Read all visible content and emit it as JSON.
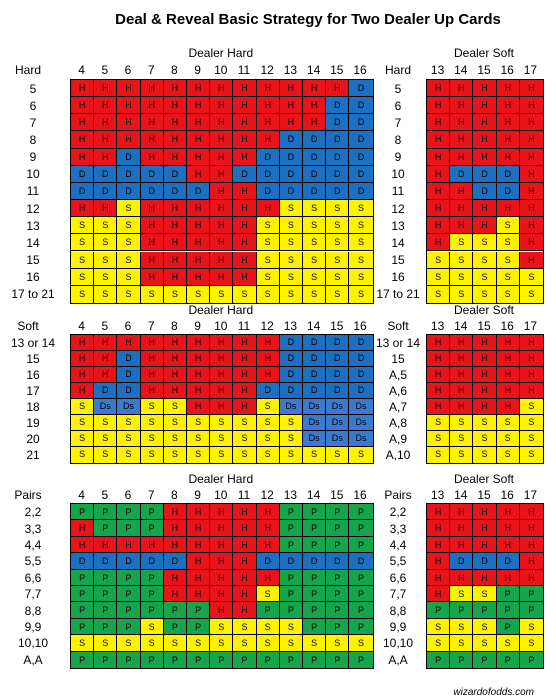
{
  "title": "Deal & Reveal Basic Strategy for Two Dealer Up Cards",
  "colors": {
    "H": "#e8141a",
    "S": "#fff200",
    "D": "#1d6fc2",
    "P": "#16a54a",
    "Ds": "#3a7ad0"
  },
  "footer": "wizardofodds.com",
  "sections": [
    {
      "corner": "Hard",
      "left_title": "Dealer Hard",
      "right_title": "Dealer Soft",
      "left_cols": [
        "4",
        "5",
        "6",
        "7",
        "8",
        "9",
        "10",
        "11",
        "12",
        "13",
        "14",
        "15",
        "16"
      ],
      "right_cols": [
        "13",
        "14",
        "15",
        "16",
        "17"
      ],
      "right_corner": "Hard",
      "rows": [
        {
          "label": "5",
          "left": [
            "H",
            "H",
            "H",
            "H",
            "H",
            "H",
            "H",
            "H",
            "H",
            "H",
            "H",
            "H",
            "D"
          ],
          "right_label": "5",
          "right": [
            "H",
            "H",
            "H",
            "H",
            "H"
          ]
        },
        {
          "label": "6",
          "left": [
            "H",
            "H",
            "H",
            "H",
            "H",
            "H",
            "H",
            "H",
            "H",
            "H",
            "H",
            "D",
            "D"
          ],
          "right_label": "6",
          "right": [
            "H",
            "H",
            "H",
            "H",
            "H"
          ]
        },
        {
          "label": "7",
          "left": [
            "H",
            "H",
            "H",
            "H",
            "H",
            "H",
            "H",
            "H",
            "H",
            "H",
            "H",
            "D",
            "D"
          ],
          "right_label": "7",
          "right": [
            "H",
            "H",
            "H",
            "H",
            "H"
          ]
        },
        {
          "label": "8",
          "left": [
            "H",
            "H",
            "H",
            "H",
            "H",
            "H",
            "H",
            "H",
            "H",
            "D",
            "D",
            "D",
            "D"
          ],
          "right_label": "8",
          "right": [
            "H",
            "H",
            "H",
            "H",
            "H"
          ]
        },
        {
          "label": "9",
          "left": [
            "H",
            "H",
            "D",
            "H",
            "H",
            "H",
            "H",
            "H",
            "D",
            "D",
            "D",
            "D",
            "D"
          ],
          "right_label": "9",
          "right": [
            "H",
            "H",
            "H",
            "H",
            "H"
          ]
        },
        {
          "label": "10",
          "left": [
            "D",
            "D",
            "D",
            "D",
            "D",
            "H",
            "H",
            "D",
            "D",
            "D",
            "D",
            "D",
            "D"
          ],
          "right_label": "10",
          "right": [
            "H",
            "D",
            "D",
            "D",
            "H"
          ]
        },
        {
          "label": "11",
          "left": [
            "D",
            "D",
            "D",
            "D",
            "D",
            "D",
            "H",
            "H",
            "D",
            "D",
            "D",
            "D",
            "D"
          ],
          "right_label": "11",
          "right": [
            "H",
            "H",
            "D",
            "D",
            "H"
          ]
        },
        {
          "label": "12",
          "left": [
            "H",
            "H",
            "S",
            "H",
            "H",
            "H",
            "H",
            "H",
            "H",
            "S",
            "S",
            "S",
            "S"
          ],
          "right_label": "12",
          "right": [
            "H",
            "H",
            "H",
            "H",
            "H"
          ]
        },
        {
          "label": "13",
          "left": [
            "S",
            "S",
            "S",
            "H",
            "H",
            "H",
            "H",
            "H",
            "S",
            "S",
            "S",
            "S",
            "S"
          ],
          "right_label": "13",
          "right": [
            "H",
            "H",
            "H",
            "S",
            "H"
          ]
        },
        {
          "label": "14",
          "left": [
            "S",
            "S",
            "S",
            "H",
            "H",
            "H",
            "H",
            "H",
            "S",
            "S",
            "S",
            "S",
            "S"
          ],
          "right_label": "14",
          "right": [
            "H",
            "S",
            "S",
            "S",
            "H"
          ]
        },
        {
          "label": "15",
          "left": [
            "S",
            "S",
            "S",
            "H",
            "H",
            "H",
            "H",
            "H",
            "S",
            "S",
            "S",
            "S",
            "S"
          ],
          "right_label": "15",
          "right": [
            "S",
            "S",
            "S",
            "S",
            "H"
          ]
        },
        {
          "label": "16",
          "left": [
            "S",
            "S",
            "S",
            "H",
            "H",
            "H",
            "H",
            "H",
            "S",
            "S",
            "S",
            "S",
            "S"
          ],
          "right_label": "16",
          "right": [
            "S",
            "S",
            "S",
            "S",
            "S"
          ]
        },
        {
          "label": "17 to 21",
          "left": [
            "S",
            "S",
            "S",
            "S",
            "S",
            "S",
            "S",
            "S",
            "S",
            "S",
            "S",
            "S",
            "S"
          ],
          "right_label": "17 to 21",
          "right": [
            "S",
            "S",
            "S",
            "S",
            "S"
          ]
        }
      ]
    },
    {
      "corner": "Soft",
      "left_title": "Dealer Hard",
      "right_title": "Dealer Soft",
      "left_cols": [
        "4",
        "5",
        "6",
        "7",
        "8",
        "9",
        "10",
        "11",
        "12",
        "13",
        "14",
        "15",
        "16"
      ],
      "right_cols": [
        "13",
        "14",
        "15",
        "16",
        "17"
      ],
      "right_corner": "Soft",
      "rows": [
        {
          "label": "13 or 14",
          "left": [
            "H",
            "H",
            "H",
            "H",
            "H",
            "H",
            "H",
            "H",
            "H",
            "D",
            "D",
            "D",
            "D"
          ],
          "right_label": "13 or 14",
          "right": [
            "H",
            "H",
            "H",
            "H",
            "H"
          ]
        },
        {
          "label": "15",
          "left": [
            "H",
            "H",
            "D",
            "H",
            "H",
            "H",
            "H",
            "H",
            "H",
            "D",
            "D",
            "D",
            "D"
          ],
          "right_label": "15",
          "right": [
            "H",
            "H",
            "H",
            "H",
            "H"
          ]
        },
        {
          "label": "16",
          "left": [
            "H",
            "H",
            "D",
            "H",
            "H",
            "H",
            "H",
            "H",
            "H",
            "D",
            "D",
            "D",
            "D"
          ],
          "right_label": "A,5",
          "right": [
            "H",
            "H",
            "H",
            "H",
            "H"
          ]
        },
        {
          "label": "17",
          "left": [
            "H",
            "D",
            "D",
            "H",
            "H",
            "H",
            "H",
            "H",
            "D",
            "D",
            "D",
            "D",
            "D"
          ],
          "right_label": "A,6",
          "right": [
            "H",
            "H",
            "H",
            "H",
            "H"
          ]
        },
        {
          "label": "18",
          "left": [
            "S",
            "Ds",
            "Ds",
            "S",
            "S",
            "H",
            "H",
            "H",
            "S",
            "Ds",
            "Ds",
            "Ds",
            "Ds"
          ],
          "right_label": "A,7",
          "right": [
            "H",
            "H",
            "H",
            "H",
            "S"
          ]
        },
        {
          "label": "19",
          "left": [
            "S",
            "S",
            "S",
            "S",
            "S",
            "S",
            "S",
            "S",
            "S",
            "S",
            "Ds",
            "Ds",
            "Ds"
          ],
          "right_label": "A,8",
          "right": [
            "S",
            "S",
            "S",
            "S",
            "S"
          ]
        },
        {
          "label": "20",
          "left": [
            "S",
            "S",
            "S",
            "S",
            "S",
            "S",
            "S",
            "S",
            "S",
            "S",
            "Ds",
            "Ds",
            "Ds"
          ],
          "right_label": "A,9",
          "right": [
            "S",
            "S",
            "S",
            "S",
            "S"
          ]
        },
        {
          "label": "21",
          "left": [
            "S",
            "S",
            "S",
            "S",
            "S",
            "S",
            "S",
            "S",
            "S",
            "S",
            "S",
            "S",
            "S"
          ],
          "right_label": "A,10",
          "right": [
            "S",
            "S",
            "S",
            "S",
            "S"
          ]
        }
      ]
    },
    {
      "corner": "Pairs",
      "left_title": "Dealer Hard",
      "right_title": "Dealer Soft",
      "left_cols": [
        "4",
        "5",
        "6",
        "7",
        "8",
        "9",
        "10",
        "11",
        "12",
        "13",
        "14",
        "15",
        "16"
      ],
      "right_cols": [
        "13",
        "14",
        "15",
        "16",
        "17"
      ],
      "right_corner": "Pairs",
      "rows": [
        {
          "label": "2,2",
          "left": [
            "P",
            "P",
            "P",
            "P",
            "H",
            "H",
            "H",
            "H",
            "H",
            "P",
            "P",
            "P",
            "P"
          ],
          "right_label": "2,2",
          "right": [
            "H",
            "H",
            "H",
            "H",
            "H"
          ]
        },
        {
          "label": "3,3",
          "left": [
            "H",
            "P",
            "P",
            "P",
            "H",
            "H",
            "H",
            "H",
            "H",
            "P",
            "P",
            "P",
            "P"
          ],
          "right_label": "3,3",
          "right": [
            "H",
            "H",
            "H",
            "H",
            "H"
          ]
        },
        {
          "label": "4,4",
          "left": [
            "H",
            "H",
            "H",
            "H",
            "H",
            "H",
            "H",
            "H",
            "H",
            "P",
            "P",
            "P",
            "P"
          ],
          "right_label": "4,4",
          "right": [
            "H",
            "H",
            "H",
            "H",
            "H"
          ]
        },
        {
          "label": "5,5",
          "left": [
            "D",
            "D",
            "D",
            "D",
            "D",
            "H",
            "H",
            "H",
            "D",
            "D",
            "D",
            "D",
            "D"
          ],
          "right_label": "5,5",
          "right": [
            "H",
            "D",
            "D",
            "D",
            "H"
          ]
        },
        {
          "label": "6,6",
          "left": [
            "P",
            "P",
            "P",
            "P",
            "H",
            "H",
            "H",
            "H",
            "H",
            "P",
            "P",
            "P",
            "P"
          ],
          "right_label": "6,6",
          "right": [
            "H",
            "H",
            "H",
            "H",
            "H"
          ]
        },
        {
          "label": "7,7",
          "left": [
            "P",
            "P",
            "P",
            "P",
            "H",
            "H",
            "H",
            "H",
            "S",
            "P",
            "P",
            "P",
            "P"
          ],
          "right_label": "7,7",
          "right": [
            "H",
            "S",
            "S",
            "P",
            "P"
          ]
        },
        {
          "label": "8,8",
          "left": [
            "P",
            "P",
            "P",
            "P",
            "P",
            "P",
            "H",
            "H",
            "P",
            "P",
            "P",
            "P",
            "P"
          ],
          "right_label": "8,8",
          "right": [
            "P",
            "P",
            "P",
            "P",
            "P"
          ]
        },
        {
          "label": "9,9",
          "left": [
            "P",
            "P",
            "P",
            "S",
            "P",
            "P",
            "S",
            "S",
            "S",
            "S",
            "P",
            "P",
            "P"
          ],
          "right_label": "9,9",
          "right": [
            "S",
            "S",
            "S",
            "P",
            "S"
          ]
        },
        {
          "label": "10,10",
          "left": [
            "S",
            "S",
            "S",
            "S",
            "S",
            "S",
            "S",
            "S",
            "S",
            "S",
            "S",
            "S",
            "S"
          ],
          "right_label": "10,10",
          "right": [
            "S",
            "S",
            "S",
            "S",
            "S"
          ]
        },
        {
          "label": "A,A",
          "left": [
            "P",
            "P",
            "P",
            "P",
            "P",
            "P",
            "P",
            "P",
            "P",
            "P",
            "P",
            "P",
            "P"
          ],
          "right_label": "A,A",
          "right": [
            "P",
            "P",
            "P",
            "P",
            "P"
          ]
        }
      ]
    }
  ]
}
